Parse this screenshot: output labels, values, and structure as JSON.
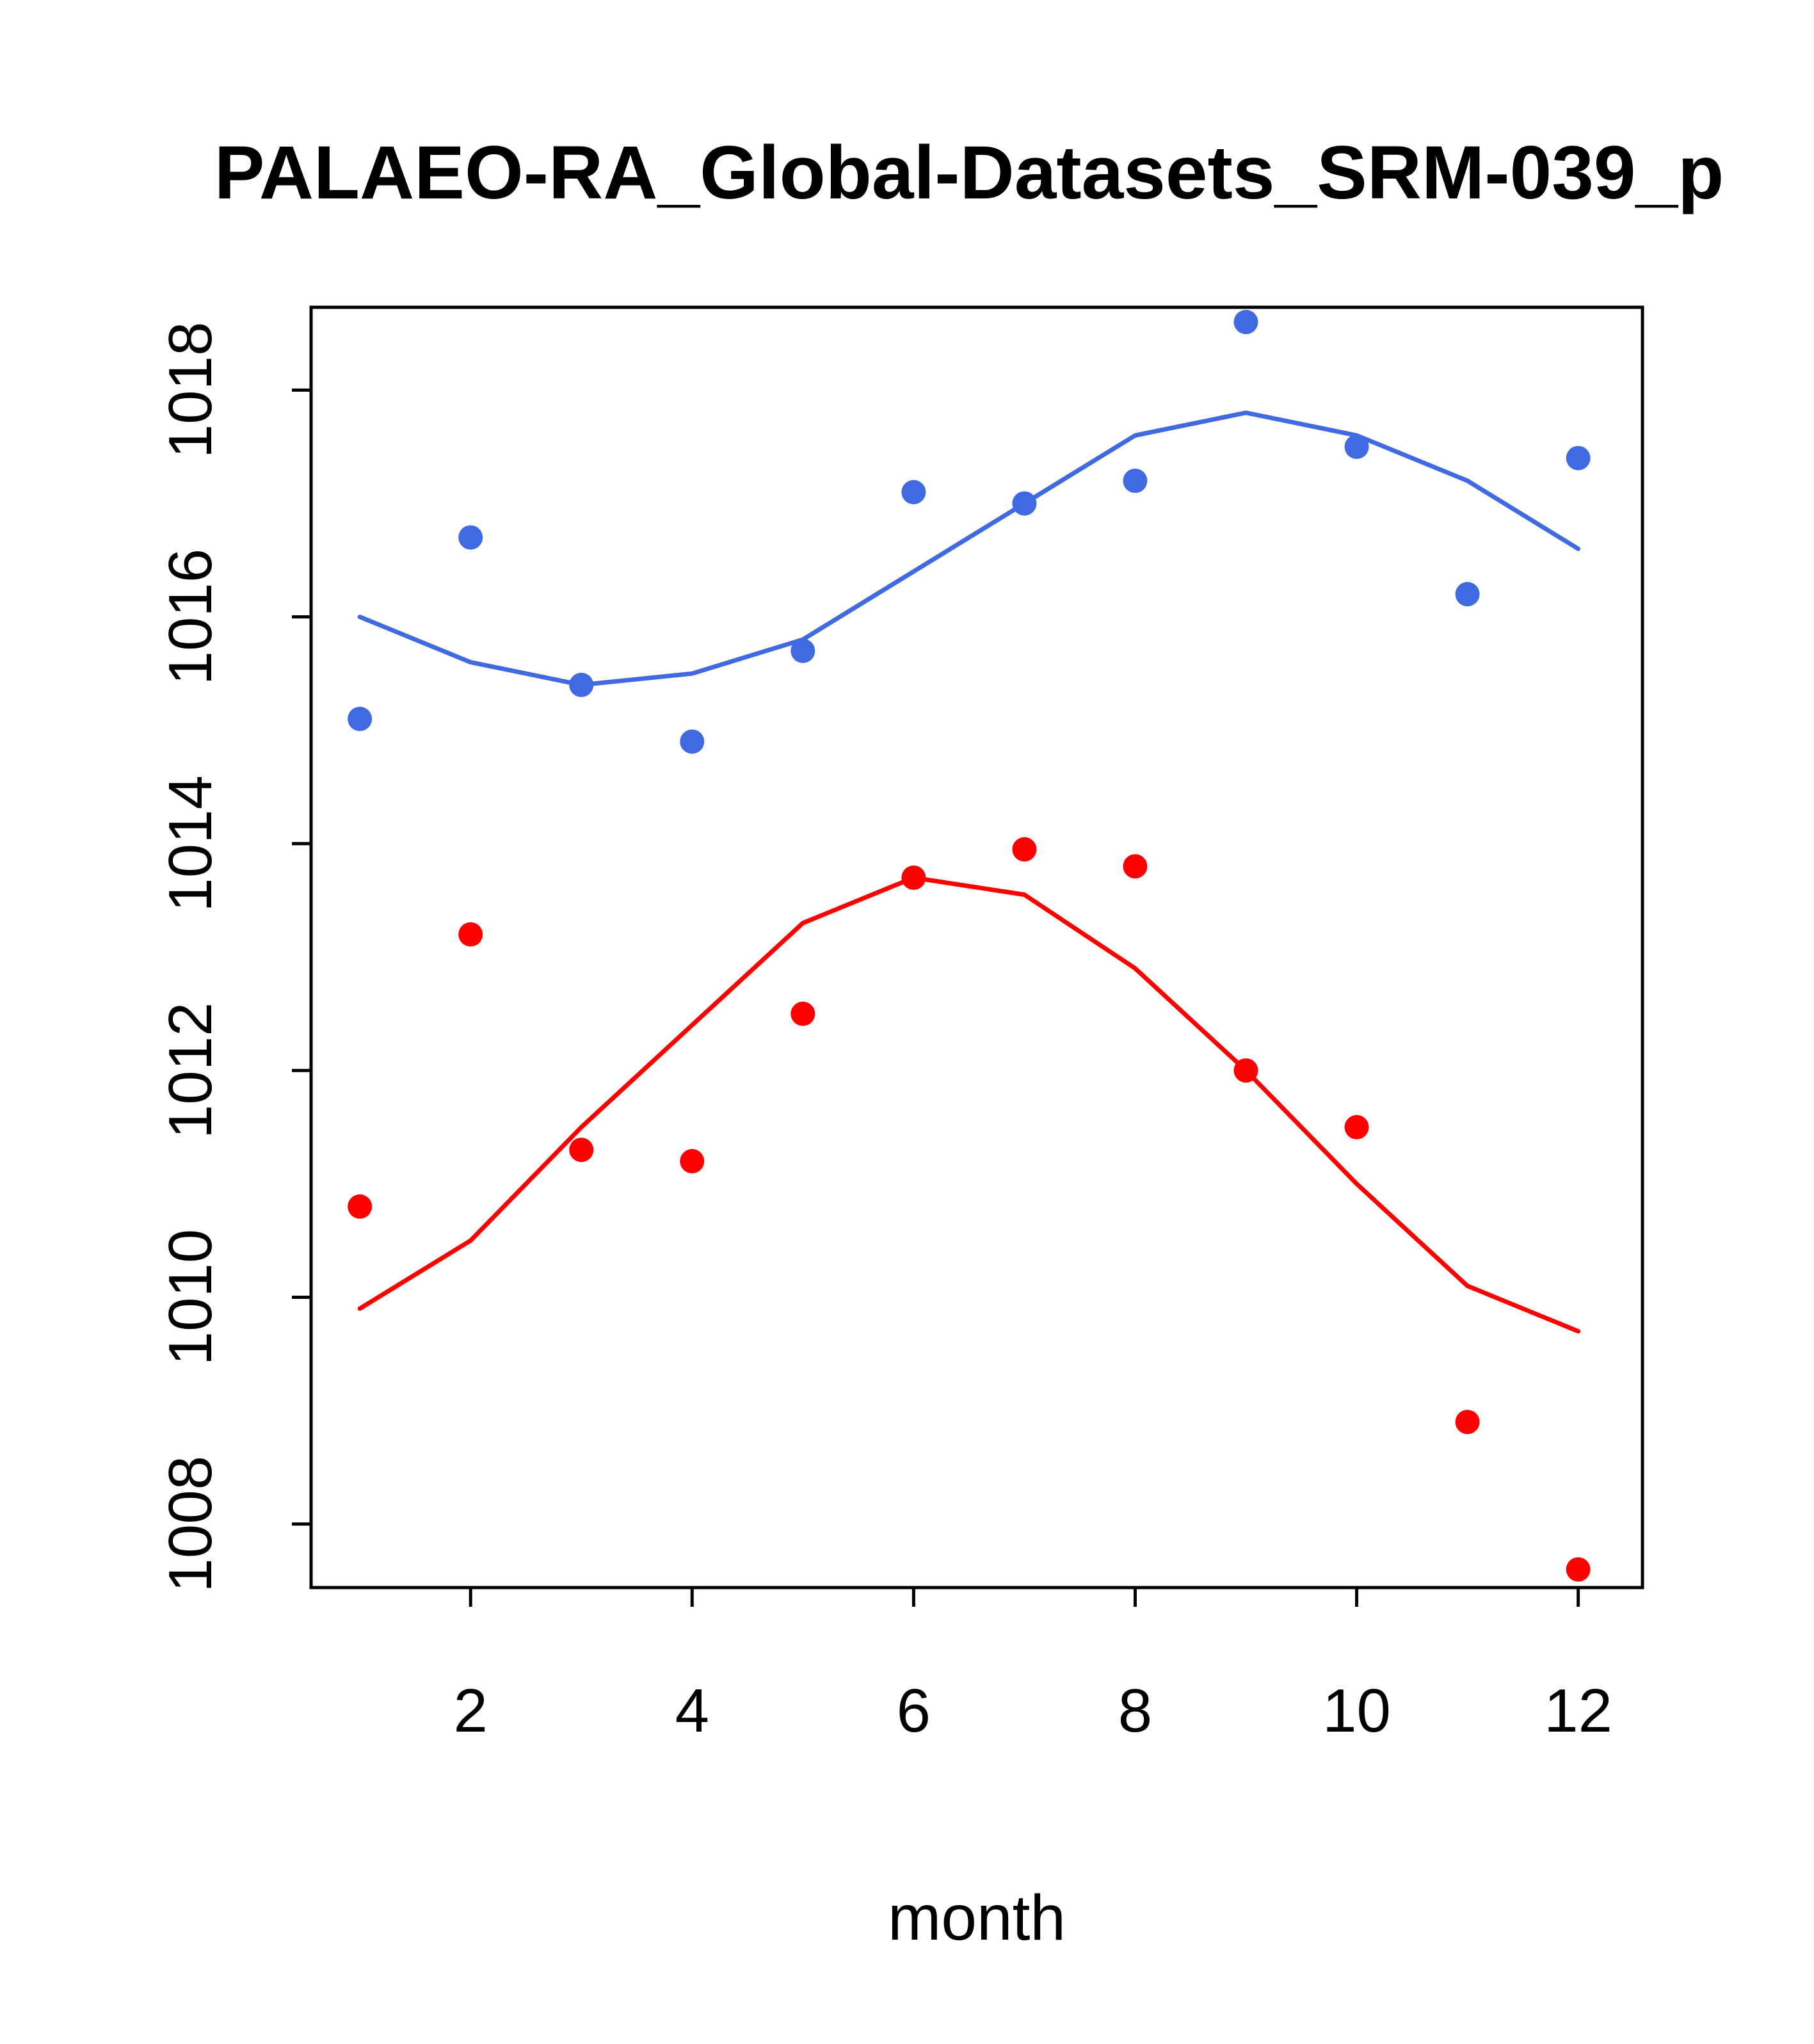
{
  "title": "PALAEO-RA_Global-Datasets_SRM-039_p",
  "chart_data": {
    "type": "scatter",
    "title": "PALAEO-RA_Global-Datasets_SRM-039_p",
    "xlabel": "month",
    "ylabel": "",
    "xlim": [
      0.56,
      12.58
    ],
    "ylim": [
      1007.44,
      1018.73
    ],
    "x_ticks": [
      2,
      4,
      6,
      8,
      10,
      12
    ],
    "y_ticks": [
      1008,
      1010,
      1012,
      1014,
      1016,
      1018
    ],
    "grid": false,
    "legend": "none",
    "x": [
      1,
      2,
      3,
      4,
      5,
      6,
      7,
      8,
      9,
      10,
      11,
      12
    ],
    "colors": {
      "blue_series": "#4169E1",
      "red_series": "#FF0000",
      "axis": "#000000",
      "background": "#FFFFFF"
    },
    "series": [
      {
        "name": "blue-smooth-line",
        "kind": "line",
        "color": "#4169E1",
        "values": [
          1016.0,
          1015.6,
          1015.4,
          1015.5,
          1015.8,
          1016.4,
          1017.0,
          1017.6,
          1017.8,
          1017.6,
          1017.2,
          1016.6
        ]
      },
      {
        "name": "red-smooth-line",
        "kind": "line",
        "color": "#FF0000",
        "values": [
          1009.9,
          1010.5,
          1011.5,
          1012.4,
          1013.3,
          1013.7,
          1013.55,
          1012.9,
          1012.0,
          1011.0,
          1010.1,
          1009.7
        ]
      },
      {
        "name": "blue-points",
        "kind": "points",
        "color": "#4169E1",
        "values": [
          1015.1,
          1016.7,
          1015.4,
          1014.9,
          1015.7,
          1017.1,
          1017.0,
          1017.2,
          1018.6,
          1017.5,
          1016.2,
          1017.4
        ]
      },
      {
        "name": "red-points",
        "kind": "points",
        "color": "#FF0000",
        "values": [
          1010.8,
          1013.2,
          1011.3,
          1011.2,
          1012.5,
          1013.7,
          1013.95,
          1013.8,
          1012.0,
          1011.5,
          1008.9,
          1007.6
        ]
      }
    ]
  }
}
